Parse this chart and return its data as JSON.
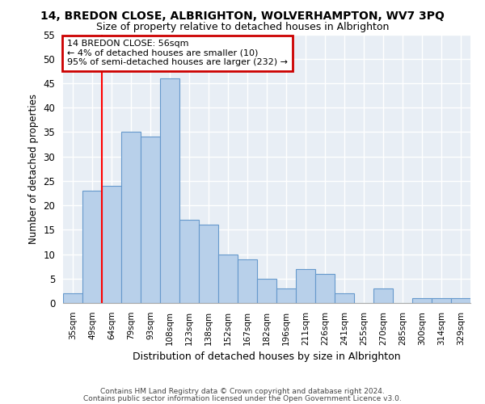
{
  "title": "14, BREDON CLOSE, ALBRIGHTON, WOLVERHAMPTON, WV7 3PQ",
  "subtitle": "Size of property relative to detached houses in Albrighton",
  "xlabel": "Distribution of detached houses by size in Albrighton",
  "ylabel": "Number of detached properties",
  "categories": [
    "35sqm",
    "49sqm",
    "64sqm",
    "79sqm",
    "93sqm",
    "108sqm",
    "123sqm",
    "138sqm",
    "152sqm",
    "167sqm",
    "182sqm",
    "196sqm",
    "211sqm",
    "226sqm",
    "241sqm",
    "255sqm",
    "270sqm",
    "285sqm",
    "300sqm",
    "314sqm",
    "329sqm"
  ],
  "values": [
    2,
    23,
    24,
    35,
    34,
    46,
    17,
    16,
    10,
    9,
    5,
    3,
    7,
    6,
    2,
    0,
    3,
    0,
    1,
    1,
    1
  ],
  "bar_color": "#b8d0ea",
  "bar_edge_color": "#6699cc",
  "fig_background": "#ffffff",
  "plot_background": "#e8eef5",
  "grid_color": "#ffffff",
  "red_line_x": 1.5,
  "annotation_text": "14 BREDON CLOSE: 56sqm\n← 4% of detached houses are smaller (10)\n95% of semi-detached houses are larger (232) →",
  "annotation_box_color": "#ffffff",
  "annotation_box_edge": "#cc0000",
  "ylim": [
    0,
    55
  ],
  "yticks": [
    0,
    5,
    10,
    15,
    20,
    25,
    30,
    35,
    40,
    45,
    50,
    55
  ],
  "footer1": "Contains HM Land Registry data © Crown copyright and database right 2024.",
  "footer2": "Contains public sector information licensed under the Open Government Licence v3.0."
}
